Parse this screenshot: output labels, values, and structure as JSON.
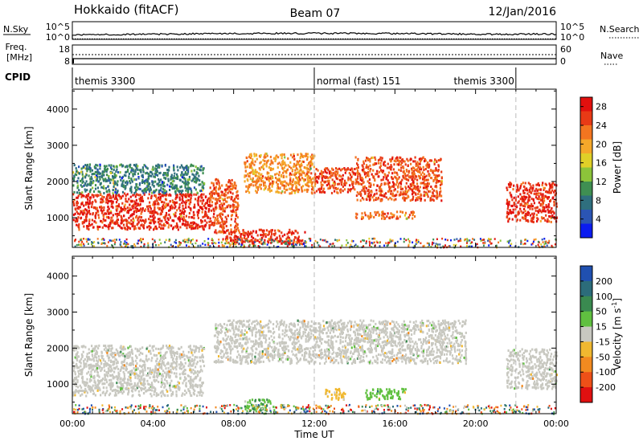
{
  "header": {
    "radar": "Hokkaido (fitACF)",
    "beam": "Beam 07",
    "date": "12/Jan/2016"
  },
  "top_panel": {
    "nsky_label": "N.Sky",
    "nsky_ticks": [
      "10^5",
      "10^0"
    ],
    "nsearch_label": "N.Search",
    "nsearch_ticks": [
      "10^5",
      "10^0"
    ],
    "freq_label": "Freq.",
    "freq_unit": "[MHz]",
    "freq_ticks": [
      "18",
      "8"
    ],
    "nave_label": "Nave",
    "nave_ticks": [
      "60",
      "0"
    ],
    "cpid_label": "CPID",
    "cpid_segments": [
      {
        "label": "themis 3300",
        "start_hour": 0,
        "end_hour": 12
      },
      {
        "label": "normal (fast) 151",
        "start_hour": 12,
        "end_hour": 22
      },
      {
        "label": "themis 3300",
        "start_hour": 22,
        "end_hour": 24
      }
    ]
  },
  "chart_data": [
    {
      "type": "heatmap",
      "name": "power",
      "ylabel": "Slant Range [km]",
      "yticks": [
        "1000",
        "2000",
        "3000",
        "4000"
      ],
      "ylim": [
        180,
        4550
      ],
      "xlim": [
        0,
        24
      ],
      "colorbar_label": "Power [dB]",
      "colorbar_ticks": [
        "4",
        "8",
        "12",
        "16",
        "20",
        "24",
        "28"
      ],
      "colorscale": [
        "#0b1cf0",
        "#2b55b4",
        "#2f6f7e",
        "#3f8f52",
        "#8cc43a",
        "#e0d028",
        "#f5a82a",
        "#f37520",
        "#e83a16",
        "#e2100e"
      ],
      "regions": [
        {
          "x": [
            0,
            6.8
          ],
          "y": [
            700,
            1700
          ],
          "value": 27
        },
        {
          "x": [
            0,
            6.5
          ],
          "y": [
            1700,
            2500
          ],
          "value": 11
        },
        {
          "x": [
            6.8,
            8.2
          ],
          "y": [
            600,
            2100
          ],
          "value": 25
        },
        {
          "x": [
            8.5,
            12
          ],
          "y": [
            1700,
            2800
          ],
          "value": 22
        },
        {
          "x": [
            12,
            14
          ],
          "y": [
            1700,
            2400
          ],
          "value": 26
        },
        {
          "x": [
            14,
            18.3
          ],
          "y": [
            1500,
            2700
          ],
          "value": 25
        },
        {
          "x": [
            7.5,
            11.5
          ],
          "y": [
            300,
            700
          ],
          "value": 27
        },
        {
          "x": [
            14,
            17
          ],
          "y": [
            1000,
            1200
          ],
          "value": 24
        },
        {
          "x": [
            21.5,
            24
          ],
          "y": [
            900,
            2000
          ],
          "value": 27
        }
      ]
    },
    {
      "type": "heatmap",
      "name": "velocity",
      "ylabel": "Slant Range [km]",
      "yticks": [
        "1000",
        "2000",
        "3000",
        "4000"
      ],
      "ylim": [
        180,
        4550
      ],
      "xlim": [
        0,
        24
      ],
      "xticks": [
        "00:00",
        "04:00",
        "08:00",
        "12:00",
        "16:00",
        "20:00",
        "00:00"
      ],
      "xlabel": "Time UT",
      "colorbar_label": "Velocity [m s",
      "colorbar_label_sup": "-1",
      "colorbar_label_end": "]",
      "colorbar_ticks": [
        "200",
        "100",
        "50",
        "15",
        "-15",
        "-50",
        "-100",
        "-200"
      ],
      "colorscale": [
        "#2050b0",
        "#2c6c7a",
        "#3a8a50",
        "#60c040",
        "#c8c8c0",
        "#f0b830",
        "#f28a20",
        "#ee5018",
        "#e01010"
      ],
      "regions": [
        {
          "x": [
            0,
            6.5
          ],
          "y": [
            700,
            2100
          ],
          "value": 0
        },
        {
          "x": [
            7,
            19.5
          ],
          "y": [
            1600,
            2800
          ],
          "value": 0
        },
        {
          "x": [
            8.5,
            10
          ],
          "y": [
            300,
            600
          ],
          "value": 60
        },
        {
          "x": [
            12.5,
            13.5
          ],
          "y": [
            600,
            900
          ],
          "value": -40
        },
        {
          "x": [
            14.5,
            16.5
          ],
          "y": [
            600,
            900
          ],
          "value": 50
        },
        {
          "x": [
            21.5,
            24
          ],
          "y": [
            900,
            2000
          ],
          "value": 0
        }
      ]
    }
  ]
}
